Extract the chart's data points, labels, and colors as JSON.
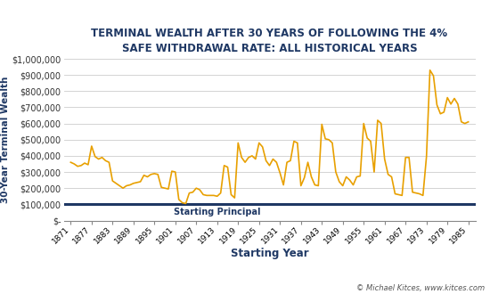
{
  "title": "TERMINAL WEALTH AFTER 30 YEARS OF FOLLOWING THE 4%\nSAFE WITHDRAWAL RATE: ALL HISTORICAL YEARS",
  "xlabel": "Starting Year",
  "ylabel": "30-Year Terminal Wealth",
  "line_color": "#E8A000",
  "principal_color": "#1F3864",
  "principal_value": 100000,
  "background_color": "#FFFFFF",
  "grid_color": "#CCCCCC",
  "ylabel_color": "#1F3864",
  "xlabel_color": "#1F3864",
  "title_color": "#1F3864",
  "watermark": "© Michael Kitces, www.kitces.com",
  "x_ticks": [
    1871,
    1877,
    1883,
    1889,
    1895,
    1901,
    1907,
    1913,
    1919,
    1925,
    1931,
    1937,
    1943,
    1949,
    1955,
    1961,
    1967,
    1973,
    1979,
    1985
  ],
  "years": [
    1871,
    1872,
    1873,
    1874,
    1875,
    1876,
    1877,
    1878,
    1879,
    1880,
    1881,
    1882,
    1883,
    1884,
    1885,
    1886,
    1887,
    1888,
    1889,
    1890,
    1891,
    1892,
    1893,
    1894,
    1895,
    1896,
    1897,
    1898,
    1899,
    1900,
    1901,
    1902,
    1903,
    1904,
    1905,
    1906,
    1907,
    1908,
    1909,
    1910,
    1911,
    1912,
    1913,
    1914,
    1915,
    1916,
    1917,
    1918,
    1919,
    1920,
    1921,
    1922,
    1923,
    1924,
    1925,
    1926,
    1927,
    1928,
    1929,
    1930,
    1931,
    1932,
    1933,
    1934,
    1935,
    1936,
    1937,
    1938,
    1939,
    1940,
    1941,
    1942,
    1943,
    1944,
    1945,
    1946,
    1947,
    1948,
    1949,
    1950,
    1951,
    1952,
    1953,
    1954,
    1955,
    1956,
    1957,
    1958,
    1959,
    1960,
    1961,
    1962,
    1963,
    1964,
    1965,
    1966,
    1967,
    1968,
    1969,
    1970,
    1971,
    1972,
    1973,
    1974,
    1975,
    1976,
    1977,
    1978,
    1979,
    1980,
    1981,
    1982,
    1983,
    1984,
    1985
  ],
  "values": [
    360000,
    350000,
    335000,
    340000,
    355000,
    345000,
    460000,
    395000,
    380000,
    390000,
    370000,
    360000,
    245000,
    230000,
    215000,
    200000,
    215000,
    220000,
    230000,
    235000,
    240000,
    280000,
    270000,
    285000,
    290000,
    285000,
    205000,
    200000,
    195000,
    305000,
    300000,
    130000,
    110000,
    105000,
    170000,
    175000,
    200000,
    190000,
    160000,
    155000,
    155000,
    155000,
    150000,
    170000,
    340000,
    330000,
    160000,
    140000,
    480000,
    390000,
    360000,
    390000,
    400000,
    380000,
    480000,
    455000,
    370000,
    340000,
    380000,
    360000,
    295000,
    220000,
    360000,
    370000,
    490000,
    480000,
    215000,
    265000,
    360000,
    270000,
    220000,
    215000,
    595000,
    505000,
    500000,
    480000,
    300000,
    240000,
    215000,
    270000,
    250000,
    220000,
    270000,
    275000,
    600000,
    510000,
    490000,
    300000,
    620000,
    600000,
    380000,
    285000,
    270000,
    165000,
    160000,
    155000,
    390000,
    390000,
    175000,
    170000,
    165000,
    155000,
    395000,
    930000,
    895000,
    715000,
    660000,
    670000,
    760000,
    720000,
    755000,
    720000,
    610000,
    600000,
    610000
  ],
  "figsize": [
    5.5,
    3.3
  ],
  "dpi": 100
}
